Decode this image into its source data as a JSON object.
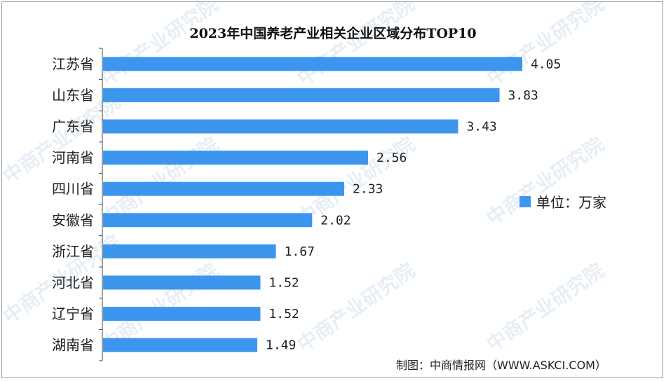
{
  "chart_data": {
    "type": "bar",
    "orientation": "horizontal",
    "title": "2023年中国养老产业相关企业区域分布TOP10",
    "categories": [
      "江苏省",
      "山东省",
      "广东省",
      "河南省",
      "四川省",
      "安徽省",
      "浙江省",
      "河北省",
      "辽宁省",
      "湖南省"
    ],
    "values": [
      4.05,
      3.83,
      3.43,
      2.56,
      2.33,
      2.02,
      1.67,
      1.52,
      1.52,
      1.49
    ],
    "value_labels": [
      "4.05",
      "3.83",
      "3.43",
      "2.56",
      "2.33",
      "2.02",
      "1.67",
      "1.52",
      "1.52",
      "1.49"
    ],
    "xlim": [
      0,
      4.05
    ],
    "legend": {
      "label": "单位：万家",
      "position": "right"
    },
    "bar_color": "#3c96ee",
    "grid": false
  },
  "watermark": "中商产业研究院",
  "source": "制图：中商情报网（WWW.ASKCI.COM）"
}
